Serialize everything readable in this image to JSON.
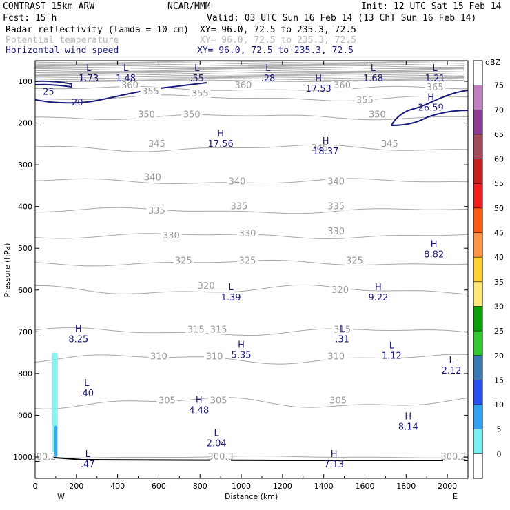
{
  "header": {
    "left_title": "CONTRAST 15km ARW",
    "center_title": "NCAR/MMM",
    "init": "Init: 12 UTC Sat 15 Feb 14",
    "fcst": "Fcst:    15 h",
    "valid": "Valid: 03 UTC Sun 16 Feb 14 (13 ChT Sun 16 Feb 14)"
  },
  "fields": [
    {
      "name": "Radar reflectivity (lamda = 10 cm)",
      "xy": "XY=   96.0, 72.5 to 235.3, 72.5",
      "color": "#000000"
    },
    {
      "name": "Potential temperature",
      "xy": "XY=   96.0, 72.5 to 235.3, 72.5",
      "color": "#b9b9b9"
    },
    {
      "name": "Horizontal wind speed",
      "xy": "XY=  96.0, 72.5 to 235.3, 72.5",
      "color": "#1a1a7a"
    }
  ],
  "chart_data": {
    "type": "cross-section",
    "xlabel": "Distance (km)",
    "ylabel": "Pressure (hPa)",
    "xlim": [
      0,
      2100
    ],
    "ylim": [
      1050,
      50
    ],
    "x_ticks": [
      "0",
      "200",
      "400",
      "600",
      "800",
      "1000",
      "1200",
      "1400",
      "1600",
      "1800",
      "2000"
    ],
    "y_ticks": [
      "100",
      "200",
      "300",
      "400",
      "500",
      "600",
      "700",
      "800",
      "900",
      "1000"
    ],
    "end_labels": {
      "left": "W",
      "right": "E"
    },
    "theta_levels": [
      {
        "label": "300.3",
        "x": 900,
        "p": 1005
      },
      {
        "label": "300.2",
        "x": 40,
        "p": 1005
      },
      {
        "label": "300.2",
        "x": 2030,
        "p": 1005
      },
      {
        "label": "305",
        "x": 640,
        "p": 870
      },
      {
        "label": "305",
        "x": 890,
        "p": 870
      },
      {
        "label": "305",
        "x": 1470,
        "p": 870
      },
      {
        "label": "310",
        "x": 600,
        "p": 765
      },
      {
        "label": "310",
        "x": 870,
        "p": 765
      },
      {
        "label": "310",
        "x": 1460,
        "p": 765
      },
      {
        "label": "315",
        "x": 780,
        "p": 700
      },
      {
        "label": "315",
        "x": 890,
        "p": 700
      },
      {
        "label": "315",
        "x": 1490,
        "p": 700
      },
      {
        "label": "320",
        "x": 830,
        "p": 595
      },
      {
        "label": "320",
        "x": 1480,
        "p": 605
      },
      {
        "label": "325",
        "x": 720,
        "p": 535
      },
      {
        "label": "325",
        "x": 1030,
        "p": 535
      },
      {
        "label": "325",
        "x": 1550,
        "p": 535
      },
      {
        "label": "330",
        "x": 660,
        "p": 475
      },
      {
        "label": "330",
        "x": 1030,
        "p": 470
      },
      {
        "label": "330",
        "x": 1460,
        "p": 465
      },
      {
        "label": "335",
        "x": 590,
        "p": 415
      },
      {
        "label": "335",
        "x": 990,
        "p": 405
      },
      {
        "label": "335",
        "x": 1460,
        "p": 405
      },
      {
        "label": "340",
        "x": 570,
        "p": 335
      },
      {
        "label": "340",
        "x": 980,
        "p": 345
      },
      {
        "label": "340",
        "x": 1460,
        "p": 345
      },
      {
        "label": "345",
        "x": 590,
        "p": 255
      },
      {
        "label": "345",
        "x": 1380,
        "p": 265
      },
      {
        "label": "345",
        "x": 1720,
        "p": 255
      },
      {
        "label": "350",
        "x": 540,
        "p": 185
      },
      {
        "label": "350",
        "x": 760,
        "p": 185
      },
      {
        "label": "350",
        "x": 1660,
        "p": 185
      },
      {
        "label": "355",
        "x": 560,
        "p": 130
      },
      {
        "label": "355",
        "x": 800,
        "p": 135
      },
      {
        "label": "355",
        "x": 1600,
        "p": 150
      },
      {
        "label": "360",
        "x": 1010,
        "p": 115
      },
      {
        "label": "360",
        "x": 1490,
        "p": 115
      },
      {
        "label": "360",
        "x": 460,
        "p": 115
      },
      {
        "label": "365",
        "x": 1940,
        "p": 120
      }
    ],
    "wind_contours": [
      {
        "label": "25",
        "p": 132,
        "x": 65
      },
      {
        "label": "20",
        "p": 158,
        "x": 205
      }
    ],
    "wind_extrema": [
      {
        "type": "L",
        "value": "1.73",
        "x": 260,
        "p": 75
      },
      {
        "type": "L",
        "value": "1.48",
        "x": 440,
        "p": 75
      },
      {
        "type": "L",
        "value": ".55",
        "x": 785,
        "p": 75
      },
      {
        "type": "L",
        "value": ".28",
        "x": 1130,
        "p": 75
      },
      {
        "type": "L",
        "value": "1.68",
        "x": 1640,
        "p": 75
      },
      {
        "type": "L",
        "value": "1.21",
        "x": 1940,
        "p": 75
      },
      {
        "type": "H",
        "value": "17.53",
        "x": 1375,
        "p": 100
      },
      {
        "type": "H",
        "value": "26.59",
        "x": 1920,
        "p": 145
      },
      {
        "type": "H",
        "value": "17.56",
        "x": 900,
        "p": 232
      },
      {
        "type": "H",
        "value": "18.37",
        "x": 1410,
        "p": 250
      },
      {
        "type": "H",
        "value": "8.82",
        "x": 1935,
        "p": 497
      },
      {
        "type": "L",
        "value": "1.39",
        "x": 950,
        "p": 600
      },
      {
        "type": "H",
        "value": "9.22",
        "x": 1665,
        "p": 600
      },
      {
        "type": "H",
        "value": "8.25",
        "x": 210,
        "p": 700
      },
      {
        "type": "L",
        "value": ".31",
        "x": 1490,
        "p": 700
      },
      {
        "type": "H",
        "value": "5.35",
        "x": 1000,
        "p": 738
      },
      {
        "type": "L",
        "value": "1.12",
        "x": 1730,
        "p": 740
      },
      {
        "type": "L",
        "value": "2.12",
        "x": 2020,
        "p": 775
      },
      {
        "type": "L",
        "value": ".40",
        "x": 250,
        "p": 830
      },
      {
        "type": "H",
        "value": "4.48",
        "x": 795,
        "p": 870
      },
      {
        "type": "H",
        "value": "8.14",
        "x": 1810,
        "p": 910
      },
      {
        "type": "L",
        "value": "2.04",
        "x": 880,
        "p": 950
      },
      {
        "type": "L",
        "value": ".47",
        "x": 255,
        "p": 1000
      },
      {
        "type": "H",
        "value": "7.13",
        "x": 1450,
        "p": 1000
      }
    ],
    "colorbar": {
      "title": "dBZ",
      "levels": [
        "75",
        "70",
        "65",
        "60",
        "55",
        "50",
        "45",
        "40",
        "35",
        "30",
        "25",
        "20",
        "15",
        "10",
        "5",
        "0"
      ],
      "colors": [
        "#ffffff",
        "#c080c0",
        "#8c3a94",
        "#a04a5a",
        "#c81e1e",
        "#f01e1e",
        "#ff5a14",
        "#ff9446",
        "#ffd232",
        "#ffe678",
        "#0aa00a",
        "#32c832",
        "#3c78b4",
        "#2850f0",
        "#32a0f0",
        "#78f0f0",
        "#ffffff"
      ]
    },
    "reflectivity_cells": [
      {
        "x_km": 95,
        "p_top": 750,
        "p_bottom": 1000,
        "dbz_class": "5-10"
      },
      {
        "x_km": 100,
        "p_top": 925,
        "p_bottom": 1000,
        "dbz_class": "10-15"
      }
    ]
  },
  "colors": {
    "theta": "#a8a8a8",
    "wind": "#1a1a7a",
    "text": "#000000"
  }
}
